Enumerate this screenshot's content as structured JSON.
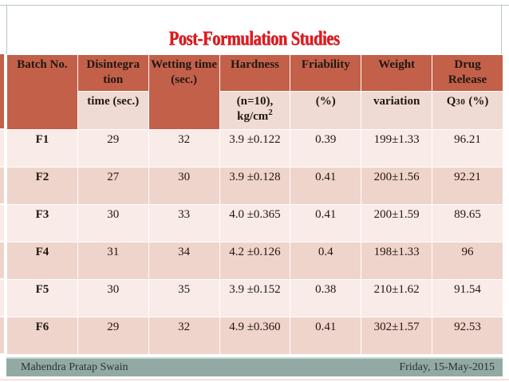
{
  "slide": {
    "title": "Post-Formulation Studies",
    "footer": {
      "author": "Mahendra Pratap Swain",
      "date": "Friday, 15-May-2015"
    },
    "colors": {
      "header_bg": "#c3604a",
      "subheader_bg": "#f0dbd4",
      "row_light": "#f9ebe7",
      "row_dark": "#efd4cc",
      "title_red": "#e41a1f",
      "footer_bg": "#93aaa4",
      "border_line": "#b9c6cb"
    }
  },
  "table": {
    "header_row1": {
      "batch": "Batch No.",
      "disintegration": "Disintegra tion",
      "wetting": "Wetting time (sec.)",
      "hardness": "Hardness",
      "friability": "Friability",
      "weight": "Weight",
      "drug": "Drug Release"
    },
    "header_row2": {
      "disintegration": "time (sec.)",
      "hardness_line1": "(n=10),",
      "hardness_line2": "kg/cm",
      "hardness_sup": "2",
      "friability": "(%)",
      "weight": "variation",
      "drug_prefix": "Q",
      "drug_sub": "30",
      "drug_suffix": "(%)"
    },
    "rows": [
      {
        "batch": "F1",
        "disintegration": "29",
        "wetting": "32",
        "hardness": "3.9 ±0.122",
        "friability": "0.39",
        "weight": "199±1.33",
        "drug": "96.21"
      },
      {
        "batch": "F2",
        "disintegration": "27",
        "wetting": "30",
        "hardness": "3.9 ±0.128",
        "friability": "0.41",
        "weight": "200±1.56",
        "drug": "92.21"
      },
      {
        "batch": "F3",
        "disintegration": "30",
        "wetting": "33",
        "hardness": "4.0 ±0.365",
        "friability": "0.41",
        "weight": "200±1.59",
        "drug": "89.65"
      },
      {
        "batch": "F4",
        "disintegration": "31",
        "wetting": "34",
        "hardness": "4.2 ±0.126",
        "friability": "0.4",
        "weight": "198±1.33",
        "drug": "96"
      },
      {
        "batch": "F5",
        "disintegration": "30",
        "wetting": "35",
        "hardness": "3.9 ±0.152",
        "friability": "0.38",
        "weight": "210±1.62",
        "drug": "91.54"
      },
      {
        "batch": "F6",
        "disintegration": "29",
        "wetting": "32",
        "hardness": "4.9 ±0.360",
        "friability": "0.41",
        "weight": "302±1.57",
        "drug": "92.53"
      }
    ]
  }
}
